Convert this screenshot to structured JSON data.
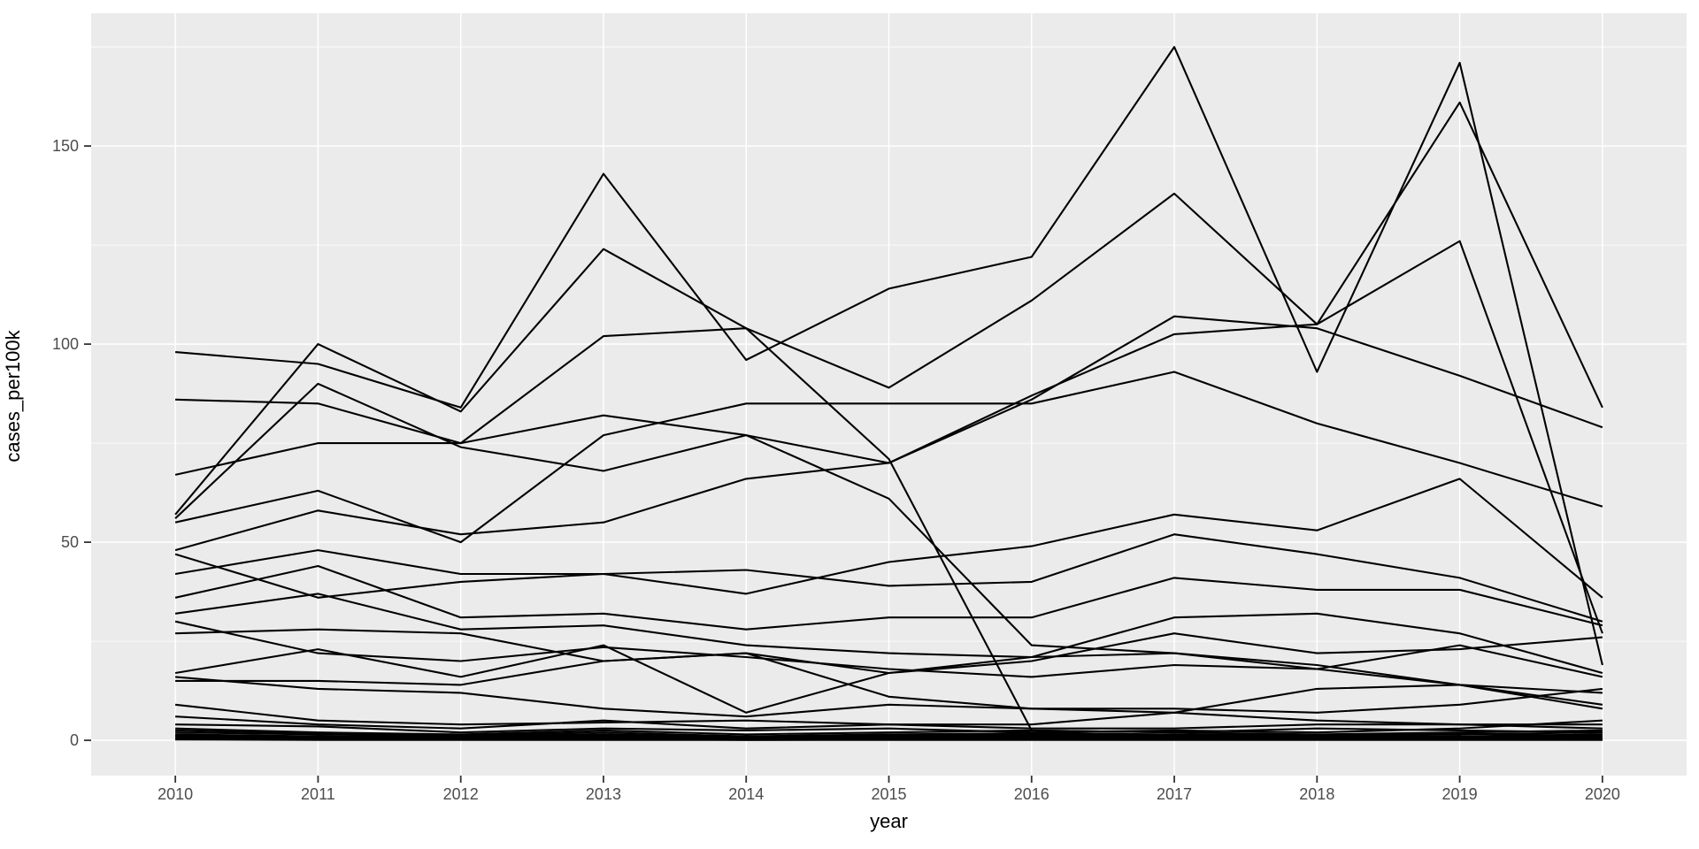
{
  "figure": {
    "background": "#ffffff",
    "panel_background": "#ebebeb",
    "grid_color": "#ffffff",
    "series_color": "#000000",
    "tick_mark_color": "#333333",
    "tick_label_color": "#4d4d4d",
    "axis_title_color": "#000000"
  },
  "chart_data": {
    "type": "line",
    "title": "",
    "xlabel": "year",
    "ylabel": "cases_per100k",
    "legend": "none",
    "grid": "major-x, major-y, minor-y on; white on gray panel",
    "x_ticks": [
      2010,
      2011,
      2012,
      2013,
      2014,
      2015,
      2016,
      2017,
      2018,
      2019,
      2020
    ],
    "x_tick_labels": [
      "2010",
      "2011",
      "2012",
      "2013",
      "2014",
      "2015",
      "2016",
      "2017",
      "2018",
      "2019",
      "2020"
    ],
    "y_ticks": [
      0,
      50,
      100,
      150
    ],
    "y_tick_labels": [
      "0",
      "50",
      "100",
      "150"
    ],
    "y_minor_ticks": [
      25,
      75,
      125,
      175
    ],
    "xlim": [
      2009.41,
      2020.59
    ],
    "ylim": [
      -8.9,
      183.5
    ],
    "x": [
      2010,
      2011,
      2012,
      2013,
      2014,
      2015,
      2016,
      2017,
      2018,
      2019,
      2020
    ],
    "series": [
      [
        98,
        95,
        84,
        143,
        96,
        114,
        122,
        175,
        93,
        171,
        19
      ],
      [
        67,
        75,
        75,
        82,
        77,
        70,
        87,
        102.5,
        105,
        161,
        84
      ],
      [
        86,
        85,
        75,
        102,
        104,
        89,
        111,
        138,
        105,
        126,
        27
      ],
      [
        57,
        100,
        83,
        124,
        104,
        71,
        2.5,
        2,
        3,
        2.5,
        2
      ],
      [
        48,
        58,
        52,
        55,
        66,
        70,
        86,
        107,
        104,
        92,
        79
      ],
      [
        55,
        63,
        50,
        77,
        85,
        85,
        85,
        93,
        80,
        70,
        59
      ],
      [
        56,
        90,
        74,
        68,
        77,
        61,
        24,
        22,
        19,
        14,
        9
      ],
      [
        47,
        36,
        40,
        42,
        37,
        45,
        49,
        57,
        53,
        66,
        36
      ],
      [
        42,
        48,
        42,
        42,
        43,
        39,
        40,
        52,
        47,
        41,
        30
      ],
      [
        36,
        44,
        31,
        32,
        28,
        31,
        31,
        41,
        38,
        38,
        29
      ],
      [
        32,
        37,
        28,
        29,
        24,
        22,
        21,
        31,
        32,
        27,
        17
      ],
      [
        27,
        28,
        27,
        20,
        22,
        17,
        20,
        27,
        22,
        23,
        26
      ],
      [
        30,
        22,
        20,
        23.5,
        21,
        18,
        16,
        19,
        18,
        24,
        16
      ],
      [
        17,
        23,
        16,
        24,
        7,
        17,
        21,
        22,
        18,
        14,
        12
      ],
      [
        15,
        15,
        14,
        20,
        22,
        11,
        8,
        7,
        13,
        14,
        8
      ],
      [
        16,
        13,
        12,
        8,
        6,
        9,
        8,
        8,
        7,
        9,
        13
      ],
      [
        9,
        5,
        4,
        4.5,
        5,
        4,
        4,
        7,
        5,
        4,
        4
      ],
      [
        6,
        4,
        3,
        5,
        3,
        4,
        3,
        3,
        4,
        4,
        3
      ],
      [
        4,
        3.5,
        2,
        3,
        2.5,
        3,
        2,
        2.5,
        2,
        3,
        5
      ],
      [
        3,
        2,
        1.5,
        2.5,
        1.5,
        2,
        2.5,
        2,
        1.5,
        2,
        2.5
      ],
      [
        2.5,
        1.8,
        1.2,
        2,
        1,
        1.5,
        1.8,
        1.5,
        1.2,
        1.8,
        1
      ],
      [
        2,
        1.5,
        1,
        1.5,
        0.8,
        1.2,
        1.5,
        1.2,
        1,
        1.5,
        2
      ],
      [
        1.5,
        1,
        0.8,
        1.2,
        0.6,
        1,
        1.2,
        1,
        0.8,
        1,
        1.5
      ],
      [
        1.2,
        0.8,
        0.5,
        1,
        0.5,
        0.8,
        1,
        0.8,
        0.5,
        0.8,
        1
      ],
      [
        1,
        0.6,
        0.4,
        0.8,
        0.3,
        0.5,
        0.8,
        0.5,
        0.4,
        0.5,
        0.6
      ],
      [
        0.8,
        0.4,
        0.3,
        0.5,
        0.2,
        0.3,
        0.5,
        0.3,
        0.3,
        0.3,
        0.4
      ],
      [
        0.5,
        0.3,
        0.2,
        0.3,
        0.1,
        0.2,
        0.3,
        0.2,
        0.2,
        0.2,
        0.2
      ],
      [
        0.2,
        0.1,
        0.1,
        0.1,
        0.1,
        0.1,
        0.1,
        0.1,
        0.1,
        0.1,
        0.1
      ]
    ]
  }
}
